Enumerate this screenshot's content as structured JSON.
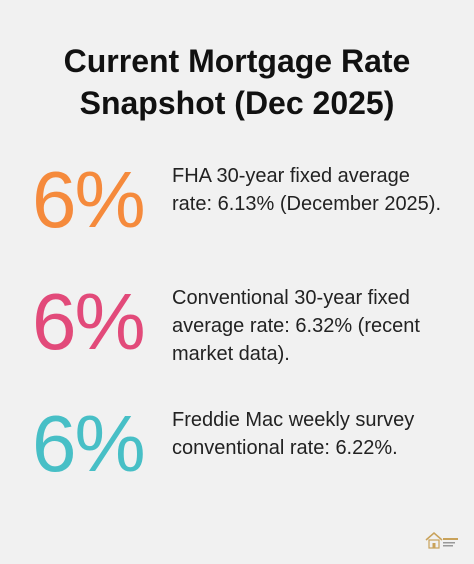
{
  "title": {
    "line1": "Current Mortgage Rate",
    "line2": "Snapshot (Dec 2025)"
  },
  "stats": [
    {
      "value": "6%",
      "color": "#f58a3c",
      "text": "FHA 30-year fixed average rate: 6.13% (December 2025)."
    },
    {
      "value": "6%",
      "color": "#e24a7a",
      "text": "Conventional 30-year fixed average rate: 6.32% (recent market data)."
    },
    {
      "value": "6%",
      "color": "#47bfc6",
      "text": "Freddie Mac weekly survey conventional rate: 6.22%."
    }
  ],
  "logo": {
    "icon": "house-logo-icon"
  }
}
